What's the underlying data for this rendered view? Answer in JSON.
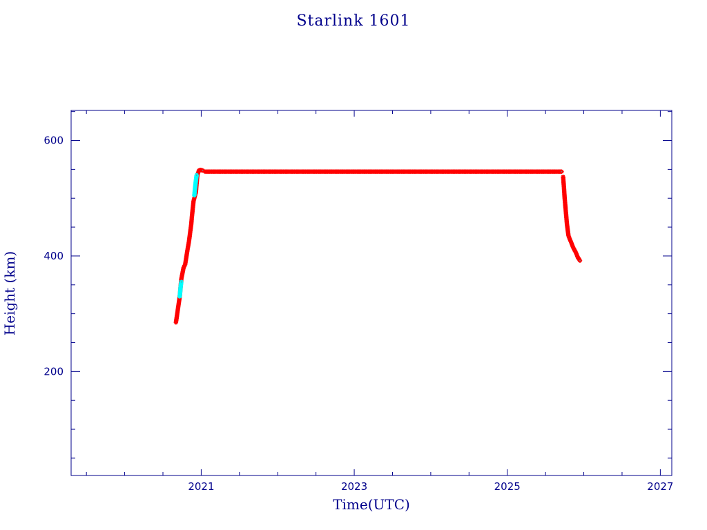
{
  "chart_data": {
    "type": "scatter",
    "title": "Starlink 1601",
    "xlabel": "Time(UTC)",
    "ylabel": "Height (km)",
    "xlim": [
      2019.3,
      2027.15
    ],
    "ylim": [
      20,
      652
    ],
    "x_ticks": [
      2021,
      2023,
      2025,
      2027
    ],
    "y_ticks": [
      200,
      400,
      600
    ],
    "colors": {
      "axis": "#00008b",
      "primary": "#ff0000",
      "secondary": "#00ffff",
      "marker_core": "#808080"
    },
    "series": [
      {
        "color": "#ff0000",
        "marker": "star",
        "segments": [
          {
            "x": [
              2020.67,
              2020.69,
              2020.72,
              2020.74,
              2020.77,
              2020.79,
              2020.82,
              2020.84,
              2020.87,
              2020.88,
              2020.9,
              2020.93,
              2020.95,
              2020.97,
              2020.99,
              2021.02
            ],
            "y": [
              285,
              303,
              330,
              360,
              380,
              385,
              410,
              425,
              455,
              470,
              495,
              510,
              540,
              548,
              549,
              548
            ]
          },
          {
            "x": [
              2021.05,
              2025.71
            ],
            "y": [
              546,
              546
            ]
          },
          {
            "x": [
              2025.73,
              2025.74,
              2025.75,
              2025.76,
              2025.77,
              2025.78,
              2025.79,
              2025.8,
              2025.82,
              2025.84,
              2025.86,
              2025.88,
              2025.9,
              2025.92,
              2025.95
            ],
            "y": [
              537,
              520,
              500,
              485,
              470,
              455,
              445,
              435,
              428,
              422,
              415,
              410,
              405,
              398,
              392
            ]
          }
        ]
      },
      {
        "color": "#00ffff",
        "marker": "star",
        "segments": [
          {
            "x": [
              2020.72,
              2020.73,
              2020.74
            ],
            "y": [
              330,
              345,
              355
            ]
          },
          {
            "x": [
              2020.91,
              2020.92,
              2020.93,
              2020.94
            ],
            "y": [
              505,
              518,
              530,
              540
            ]
          }
        ]
      }
    ]
  }
}
